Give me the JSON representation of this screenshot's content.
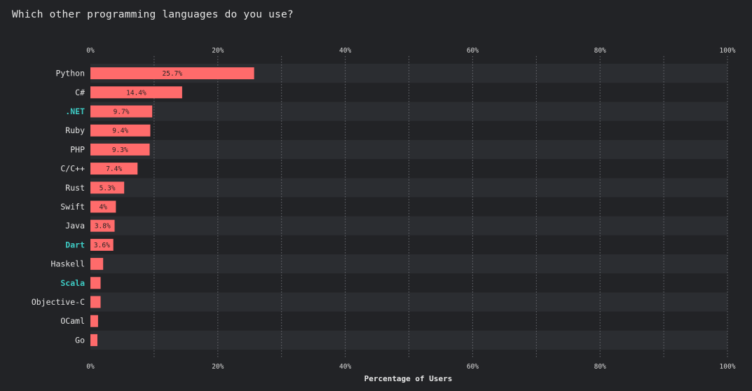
{
  "question": "Which other programming languages do you use?",
  "colors": {
    "background": "#222326",
    "band": "#2b2d31",
    "bar": "#ff6b6b",
    "highlight_label": "#3ecbc4",
    "grid": "#6a6c72"
  },
  "chart_data": {
    "type": "bar",
    "orientation": "horizontal",
    "title": "",
    "xlabel": "Percentage of Users",
    "ylabel": "",
    "xlim": [
      0,
      100
    ],
    "ticks": [
      "0%",
      "20%",
      "40%",
      "60%",
      "80%",
      "100%"
    ],
    "tick_values": [
      0,
      20,
      40,
      60,
      80,
      100
    ],
    "minor_grid_values": [
      10,
      30,
      50,
      70,
      90
    ],
    "grid": true,
    "legend": "none",
    "categories": [
      "Python",
      "C#",
      ".NET",
      "Ruby",
      "PHP",
      "C/C++",
      "Rust",
      "Swift",
      "Java",
      "Dart",
      "Haskell",
      "Scala",
      "Objective-C",
      "OCaml",
      "Go"
    ],
    "values": [
      25.7,
      14.4,
      9.7,
      9.4,
      9.3,
      7.4,
      5.3,
      4,
      3.8,
      3.6,
      2,
      1.6,
      1.6,
      1.2,
      1.1
    ],
    "value_labels": [
      "25.7%",
      "14.4%",
      "9.7%",
      "9.4%",
      "9.3%",
      "7.4%",
      "5.3%",
      "4%",
      "3.8%",
      "3.6%",
      "",
      "",
      "",
      "",
      ""
    ],
    "highlighted_categories": [
      ".NET",
      "Dart",
      "Scala"
    ]
  }
}
